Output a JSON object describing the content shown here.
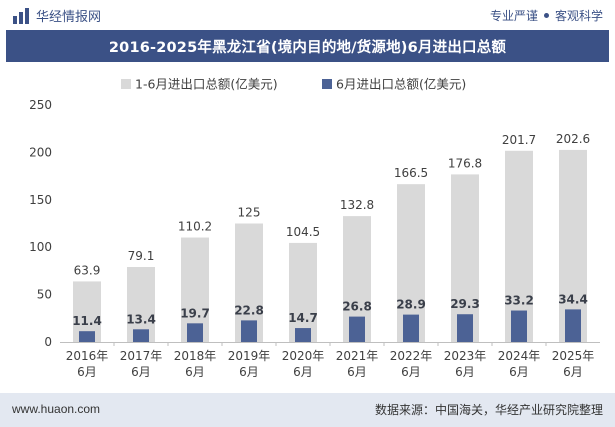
{
  "header": {
    "brand_name": "华经情报网",
    "slogan_left": "专业严谨",
    "slogan_right": "客观科学"
  },
  "colors": {
    "brand": "#3b5186",
    "series_total": "#d9d9d9",
    "series_june": "#4c6295"
  },
  "chart_data": {
    "type": "bar",
    "title": "2016-2025年黑龙江省(境内目的地/货源地)6月进出口总额",
    "categories": [
      [
        "2016年",
        "6月"
      ],
      [
        "2017年",
        "6月"
      ],
      [
        "2018年",
        "6月"
      ],
      [
        "2019年",
        "6月"
      ],
      [
        "2020年",
        "6月"
      ],
      [
        "2021年",
        "6月"
      ],
      [
        "2022年",
        "6月"
      ],
      [
        "2023年",
        "6月"
      ],
      [
        "2024年",
        "6月"
      ],
      [
        "2025年",
        "6月"
      ]
    ],
    "series": [
      {
        "name": "1-6月进出口总额(亿美元)",
        "values": [
          63.9,
          79.1,
          110.2,
          125,
          104.5,
          132.8,
          166.5,
          176.8,
          201.7,
          202.6
        ]
      },
      {
        "name": "6月进出口总额(亿美元)",
        "values": [
          11.4,
          13.4,
          19.7,
          22.8,
          14.7,
          26.8,
          28.9,
          29.3,
          33.2,
          34.4
        ]
      }
    ],
    "ylim": [
      0,
      250
    ],
    "yticks": [
      0,
      50,
      100,
      150,
      200,
      250
    ],
    "legend_position": "top",
    "grid": false
  },
  "footer": {
    "website": "www.huaon.com",
    "source": "数据来源：中国海关，华经产业研究院整理"
  }
}
